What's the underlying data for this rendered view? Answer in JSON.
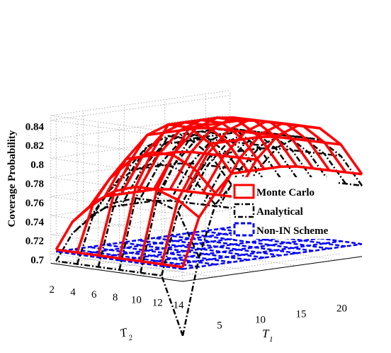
{
  "chart_data": {
    "type": "surface3d",
    "title": "",
    "zlabel": "Coverage Probability",
    "xlabel": "T",
    "xlabel_sub": "1",
    "ylabel": "T",
    "ylabel_sub": "2",
    "zlim": [
      0.69,
      0.845
    ],
    "z_ticks": [
      "0.7",
      "0.72",
      "0.74",
      "0.76",
      "0.78",
      "0.8",
      "0.82",
      "0.84"
    ],
    "x_ticks": [
      "5",
      "10",
      "15",
      "20"
    ],
    "y_ticks": [
      "2",
      "4",
      "6",
      "8",
      "10",
      "12",
      "14"
    ],
    "grid": true,
    "legend_position": "right",
    "series": [
      {
        "name": "Monte Carlo",
        "color": "#ff0000",
        "line": "solid",
        "note": "surface rises from ~0.705 at T2=14,T1=1 to ~0.84 near T1=10-14, T2=8-10"
      },
      {
        "name": "Analytical",
        "color": "#000000",
        "line": "dash-dot",
        "note": "similar surface slightly below Monte Carlo, dropping below 0.7 at T2=14,T1=1"
      },
      {
        "name": "Non-IN Scheme",
        "color": "#0000ff",
        "line": "dashed",
        "note": "nearly flat plane at ~0.703"
      }
    ]
  }
}
